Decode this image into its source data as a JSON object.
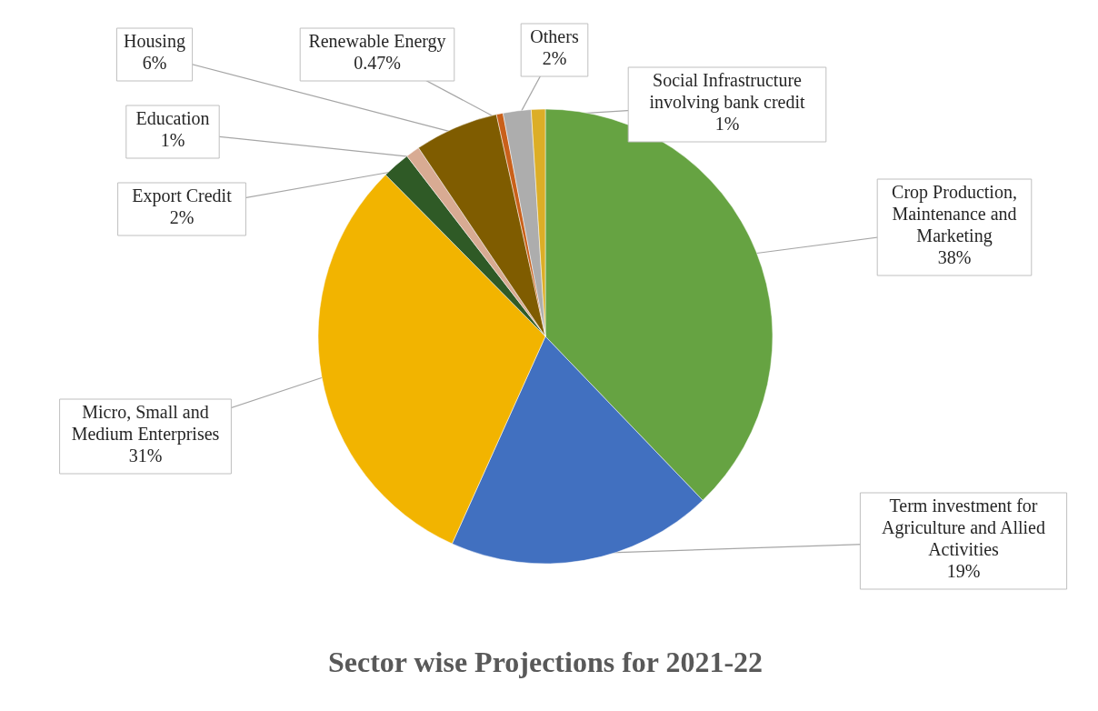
{
  "chart_data": {
    "type": "pie",
    "title": "Sector wise Projections for 2021-22",
    "categories": [
      "Crop Production, Maintenance and Marketing",
      "Term investment for Agriculture and Allied Activities",
      "Micro, Small and Medium Enterprises",
      "Export Credit",
      "Education",
      "Housing",
      "Renewable Energy",
      "Others",
      "Social Infrastructure involving bank credit"
    ],
    "values": [
      38,
      19,
      31,
      2,
      1,
      6,
      0.47,
      2,
      1
    ],
    "value_labels": [
      "38%",
      "19%",
      "31%",
      "2%",
      "1%",
      "6%",
      "0.47%",
      "2%",
      "1%"
    ],
    "colors": [
      "#66a342",
      "#4170c0",
      "#f2b400",
      "#2f5a26",
      "#d8ab93",
      "#7f5c00",
      "#c9601a",
      "#adadad",
      "#dcae27"
    ]
  }
}
